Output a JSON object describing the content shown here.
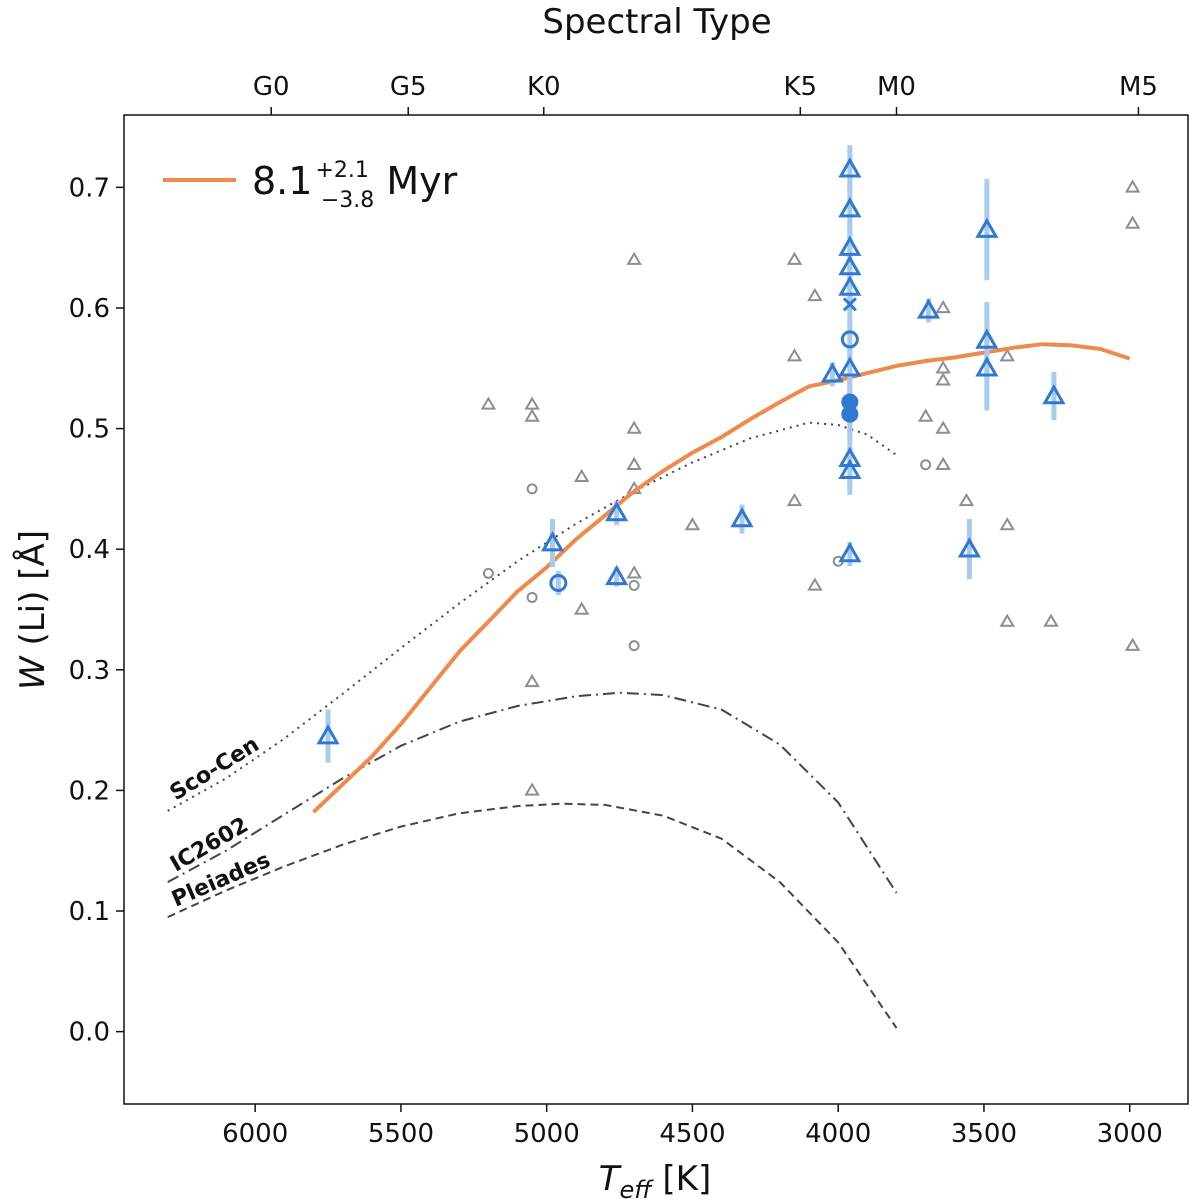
{
  "chart_data": {
    "type": "scatter",
    "xlabel": {
      "main": "T",
      "sub": "eff",
      "unit": " [K]"
    },
    "ylabel": {
      "main": "W",
      "rest": " (Li) [Å]"
    },
    "top_axis_title": "Spectral Type",
    "xlim": [
      6450,
      2800
    ],
    "ylim": [
      -0.06,
      0.76
    ],
    "x_ticks": [
      6000,
      5500,
      5000,
      4500,
      4000,
      3500,
      3000
    ],
    "y_ticks": [
      0.0,
      0.1,
      0.2,
      0.3,
      0.4,
      0.5,
      0.6,
      0.7
    ],
    "y_tick_labels": [
      "0.0",
      "0.1",
      "0.2",
      "0.3",
      "0.4",
      "0.5",
      "0.6",
      "0.7"
    ],
    "spectral_types": [
      {
        "label": "G0",
        "teff": 5945
      },
      {
        "label": "G5",
        "teff": 5475
      },
      {
        "label": "K0",
        "teff": 5010
      },
      {
        "label": "K5",
        "teff": 4130
      },
      {
        "label": "M0",
        "teff": 3800
      },
      {
        "label": "M5",
        "teff": 2970
      }
    ],
    "legend": {
      "base": "8.1",
      "sup": "+2.1",
      "sub": "−3.8",
      "unit": " Myr",
      "color": "#f08a4b"
    },
    "colors": {
      "model": "#f08a4b",
      "members": "#2f79d0",
      "members_err": "#a9cbee",
      "field": "#8a8f96",
      "reference": "#444444"
    },
    "model_curve": [
      [
        5800,
        0.182
      ],
      [
        5700,
        0.205
      ],
      [
        5600,
        0.228
      ],
      [
        5500,
        0.255
      ],
      [
        5400,
        0.285
      ],
      [
        5300,
        0.315
      ],
      [
        5200,
        0.34
      ],
      [
        5100,
        0.365
      ],
      [
        5000,
        0.385
      ],
      [
        4900,
        0.408
      ],
      [
        4800,
        0.428
      ],
      [
        4700,
        0.448
      ],
      [
        4600,
        0.465
      ],
      [
        4500,
        0.48
      ],
      [
        4400,
        0.493
      ],
      [
        4300,
        0.508
      ],
      [
        4200,
        0.522
      ],
      [
        4100,
        0.535
      ],
      [
        4000,
        0.54
      ],
      [
        3900,
        0.546
      ],
      [
        3800,
        0.552
      ],
      [
        3700,
        0.556
      ],
      [
        3600,
        0.559
      ],
      [
        3500,
        0.563
      ],
      [
        3400,
        0.567
      ],
      [
        3300,
        0.57
      ],
      [
        3200,
        0.569
      ],
      [
        3100,
        0.566
      ],
      [
        3000,
        0.558
      ]
    ],
    "reference_curves": [
      {
        "name": "Sco-Cen",
        "style": "dotted",
        "points": [
          [
            6300,
            0.183
          ],
          [
            6100,
            0.21
          ],
          [
            5900,
            0.243
          ],
          [
            5700,
            0.28
          ],
          [
            5500,
            0.318
          ],
          [
            5300,
            0.355
          ],
          [
            5100,
            0.39
          ],
          [
            4900,
            0.421
          ],
          [
            4700,
            0.448
          ],
          [
            4500,
            0.472
          ],
          [
            4300,
            0.492
          ],
          [
            4100,
            0.505
          ],
          [
            4000,
            0.503
          ],
          [
            3900,
            0.495
          ],
          [
            3800,
            0.478
          ]
        ]
      },
      {
        "name": "IC2602",
        "style": "dashdot",
        "points": [
          [
            6300,
            0.124
          ],
          [
            6100,
            0.15
          ],
          [
            5900,
            0.18
          ],
          [
            5700,
            0.21
          ],
          [
            5500,
            0.237
          ],
          [
            5300,
            0.257
          ],
          [
            5100,
            0.27
          ],
          [
            4900,
            0.278
          ],
          [
            4750,
            0.281
          ],
          [
            4600,
            0.279
          ],
          [
            4400,
            0.267
          ],
          [
            4200,
            0.238
          ],
          [
            4000,
            0.19
          ],
          [
            3800,
            0.115
          ]
        ]
      },
      {
        "name": "Pleiades",
        "style": "dashed",
        "points": [
          [
            6300,
            0.095
          ],
          [
            6100,
            0.117
          ],
          [
            5900,
            0.137
          ],
          [
            5700,
            0.155
          ],
          [
            5500,
            0.17
          ],
          [
            5300,
            0.181
          ],
          [
            5100,
            0.187
          ],
          [
            4950,
            0.189
          ],
          [
            4800,
            0.188
          ],
          [
            4600,
            0.179
          ],
          [
            4400,
            0.16
          ],
          [
            4200,
            0.124
          ],
          [
            4000,
            0.074
          ],
          [
            3800,
            0.003
          ]
        ]
      }
    ],
    "members": [
      {
        "teff": 5750,
        "w": 0.245,
        "err": 0.022,
        "marker": "triangle"
      },
      {
        "teff": 4980,
        "w": 0.405,
        "err": 0.02,
        "marker": "triangle"
      },
      {
        "teff": 4960,
        "w": 0.372,
        "err": 0.01,
        "marker": "circle"
      },
      {
        "teff": 4760,
        "w": 0.43,
        "err": 0.01,
        "marker": "triangle"
      },
      {
        "teff": 4760,
        "w": 0.377,
        "err": 0.008,
        "marker": "triangle"
      },
      {
        "teff": 4330,
        "w": 0.425,
        "err": 0.012,
        "marker": "triangle"
      },
      {
        "teff": 4020,
        "w": 0.545,
        "err": 0.01,
        "marker": "triangle"
      },
      {
        "teff": 3960,
        "w": 0.715,
        "err": 0.02,
        "marker": "triangle"
      },
      {
        "teff": 3960,
        "w": 0.682,
        "err": 0.022,
        "marker": "triangle"
      },
      {
        "teff": 3960,
        "w": 0.65,
        "err": 0.022,
        "marker": "triangle"
      },
      {
        "teff": 3960,
        "w": 0.634,
        "err": 0.02,
        "marker": "triangle"
      },
      {
        "teff": 3960,
        "w": 0.617,
        "err": 0.02,
        "marker": "triangle"
      },
      {
        "teff": 3960,
        "w": 0.603,
        "err": 0.018,
        "marker": "cross"
      },
      {
        "teff": 3960,
        "w": 0.574,
        "err": 0.018,
        "marker": "circle"
      },
      {
        "teff": 3960,
        "w": 0.55,
        "err": 0.02,
        "marker": "triangle"
      },
      {
        "teff": 3960,
        "w": 0.522,
        "err": 0.02,
        "marker": "filled-circle"
      },
      {
        "teff": 3960,
        "w": 0.512,
        "err": 0.02,
        "marker": "filled-circle"
      },
      {
        "teff": 3960,
        "w": 0.475,
        "err": 0.025,
        "marker": "triangle"
      },
      {
        "teff": 3960,
        "w": 0.465,
        "err": 0.02,
        "marker": "triangle"
      },
      {
        "teff": 3960,
        "w": 0.396,
        "err": 0.01,
        "marker": "triangle"
      },
      {
        "teff": 3690,
        "w": 0.598,
        "err": 0.01,
        "marker": "triangle"
      },
      {
        "teff": 3490,
        "w": 0.665,
        "err": 0.042,
        "marker": "triangle"
      },
      {
        "teff": 3490,
        "w": 0.573,
        "err": 0.032,
        "marker": "triangle"
      },
      {
        "teff": 3490,
        "w": 0.55,
        "err": 0.035,
        "marker": "triangle"
      },
      {
        "teff": 3550,
        "w": 0.4,
        "err": 0.025,
        "marker": "triangle"
      },
      {
        "teff": 3260,
        "w": 0.527,
        "err": 0.02,
        "marker": "triangle"
      }
    ],
    "field": [
      {
        "teff": 5200,
        "w": 0.52,
        "marker": "triangle"
      },
      {
        "teff": 5050,
        "w": 0.52,
        "marker": "triangle"
      },
      {
        "teff": 5050,
        "w": 0.51,
        "marker": "triangle"
      },
      {
        "teff": 5050,
        "w": 0.45,
        "marker": "circle"
      },
      {
        "teff": 5200,
        "w": 0.38,
        "marker": "circle"
      },
      {
        "teff": 5050,
        "w": 0.36,
        "marker": "circle"
      },
      {
        "teff": 5050,
        "w": 0.29,
        "marker": "triangle"
      },
      {
        "teff": 5050,
        "w": 0.2,
        "marker": "triangle"
      },
      {
        "teff": 4880,
        "w": 0.46,
        "marker": "triangle"
      },
      {
        "teff": 4880,
        "w": 0.35,
        "marker": "triangle"
      },
      {
        "teff": 4700,
        "w": 0.64,
        "marker": "triangle"
      },
      {
        "teff": 4700,
        "w": 0.5,
        "marker": "triangle"
      },
      {
        "teff": 4700,
        "w": 0.47,
        "marker": "triangle"
      },
      {
        "teff": 4700,
        "w": 0.45,
        "marker": "triangle"
      },
      {
        "teff": 4700,
        "w": 0.38,
        "marker": "triangle"
      },
      {
        "teff": 4700,
        "w": 0.37,
        "marker": "circle"
      },
      {
        "teff": 4700,
        "w": 0.32,
        "marker": "circle"
      },
      {
        "teff": 4500,
        "w": 0.42,
        "marker": "triangle"
      },
      {
        "teff": 4150,
        "w": 0.64,
        "marker": "triangle"
      },
      {
        "teff": 4150,
        "w": 0.56,
        "marker": "triangle"
      },
      {
        "teff": 4150,
        "w": 0.44,
        "marker": "triangle"
      },
      {
        "teff": 4080,
        "w": 0.61,
        "marker": "triangle"
      },
      {
        "teff": 4080,
        "w": 0.37,
        "marker": "triangle"
      },
      {
        "teff": 4000,
        "w": 0.39,
        "marker": "circle"
      },
      {
        "teff": 3700,
        "w": 0.51,
        "marker": "triangle"
      },
      {
        "teff": 3700,
        "w": 0.47,
        "marker": "circle"
      },
      {
        "teff": 3640,
        "w": 0.6,
        "marker": "triangle"
      },
      {
        "teff": 3640,
        "w": 0.55,
        "marker": "triangle"
      },
      {
        "teff": 3640,
        "w": 0.54,
        "marker": "triangle"
      },
      {
        "teff": 3640,
        "w": 0.5,
        "marker": "triangle"
      },
      {
        "teff": 3640,
        "w": 0.47,
        "marker": "triangle"
      },
      {
        "teff": 3560,
        "w": 0.44,
        "marker": "triangle"
      },
      {
        "teff": 3420,
        "w": 0.56,
        "marker": "triangle"
      },
      {
        "teff": 3420,
        "w": 0.42,
        "marker": "triangle"
      },
      {
        "teff": 3420,
        "w": 0.34,
        "marker": "triangle"
      },
      {
        "teff": 3270,
        "w": 0.34,
        "marker": "triangle"
      },
      {
        "teff": 2990,
        "w": 0.7,
        "marker": "triangle"
      },
      {
        "teff": 2990,
        "w": 0.67,
        "marker": "triangle"
      },
      {
        "teff": 2990,
        "w": 0.32,
        "marker": "triangle"
      }
    ]
  }
}
